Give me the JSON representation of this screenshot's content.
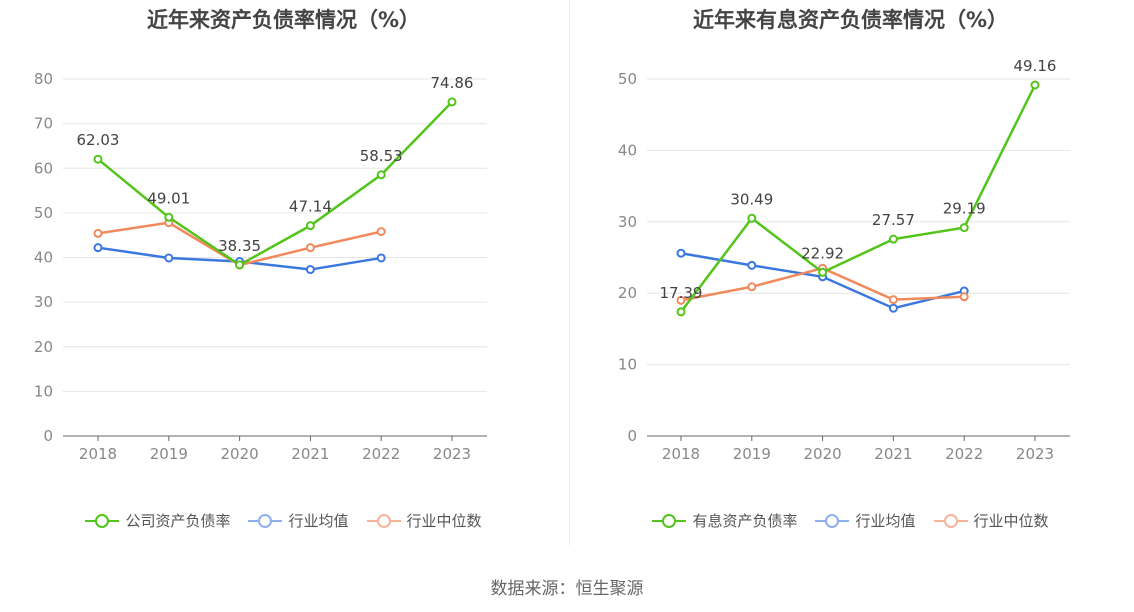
{
  "chart_data": [
    {
      "type": "line",
      "title": "近年来资产负债率情况（%）",
      "categories": [
        "2018",
        "2019",
        "2020",
        "2021",
        "2022",
        "2023"
      ],
      "ylim": [
        0,
        80
      ],
      "yticks": [
        0,
        10,
        20,
        30,
        40,
        50,
        60,
        70,
        80
      ],
      "grid": true,
      "legend_position": "bottom",
      "series": [
        {
          "name": "公司资产负债率",
          "color": "#52c41a",
          "values": [
            62.03,
            49.01,
            38.35,
            47.14,
            58.53,
            74.86
          ],
          "labeled": true
        },
        {
          "name": "行业均值",
          "color": "#3a78e0",
          "values": [
            42.2,
            39.9,
            39.1,
            37.3,
            39.9,
            null
          ],
          "labeled": false
        },
        {
          "name": "行业中位数",
          "color": "#f08a5d",
          "values": [
            45.4,
            47.8,
            38.3,
            42.2,
            45.8,
            null
          ],
          "labeled": false
        }
      ],
      "legend_colors": [
        "#52c41a",
        "#8fb0ee",
        "#f7b49a"
      ]
    },
    {
      "type": "line",
      "title": "近年来有息资产负债率情况（%）",
      "categories": [
        "2018",
        "2019",
        "2020",
        "2021",
        "2022",
        "2023"
      ],
      "ylim": [
        0,
        50
      ],
      "yticks": [
        0,
        10,
        20,
        30,
        40,
        50
      ],
      "grid": true,
      "legend_position": "bottom",
      "series": [
        {
          "name": "有息资产负债率",
          "color": "#52c41a",
          "values": [
            17.39,
            30.49,
            22.92,
            27.57,
            29.19,
            49.16
          ],
          "labeled": true
        },
        {
          "name": "行业均值",
          "color": "#3a78e0",
          "values": [
            25.6,
            23.9,
            22.3,
            17.9,
            20.3,
            null
          ],
          "labeled": false
        },
        {
          "name": "行业中位数",
          "color": "#f08a5d",
          "values": [
            19.0,
            20.9,
            23.5,
            19.1,
            19.5,
            null
          ],
          "labeled": false
        }
      ],
      "legend_colors": [
        "#52c41a",
        "#8fb0ee",
        "#f7b49a"
      ]
    }
  ],
  "source": "数据来源：恒生聚源"
}
